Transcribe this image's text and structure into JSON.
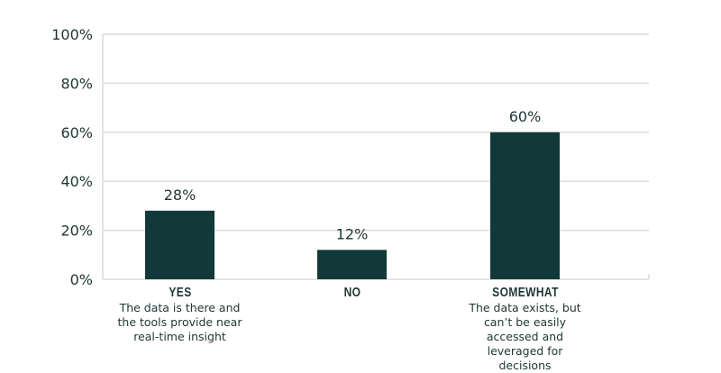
{
  "chart_data": {
    "type": "bar",
    "categories": [
      "YES",
      "NO",
      "SOMEWHAT"
    ],
    "descriptions": [
      "The data is there and the tools provide near real-time insight",
      "",
      "The data exists, but can’t be easily accessed and leveraged for decisions"
    ],
    "values": [
      28,
      12,
      60
    ],
    "data_labels": [
      "28%",
      "12%",
      "60%"
    ],
    "ylim": [
      0,
      100
    ],
    "yticks": [
      0,
      20,
      40,
      60,
      80,
      100
    ],
    "ytick_labels": [
      "0%",
      "20%",
      "40%",
      "60%",
      "80%",
      "100%"
    ],
    "grid": true,
    "colors": {
      "bar": "#12393a",
      "grid": "#dedbd5",
      "text": "#1d3633"
    }
  }
}
